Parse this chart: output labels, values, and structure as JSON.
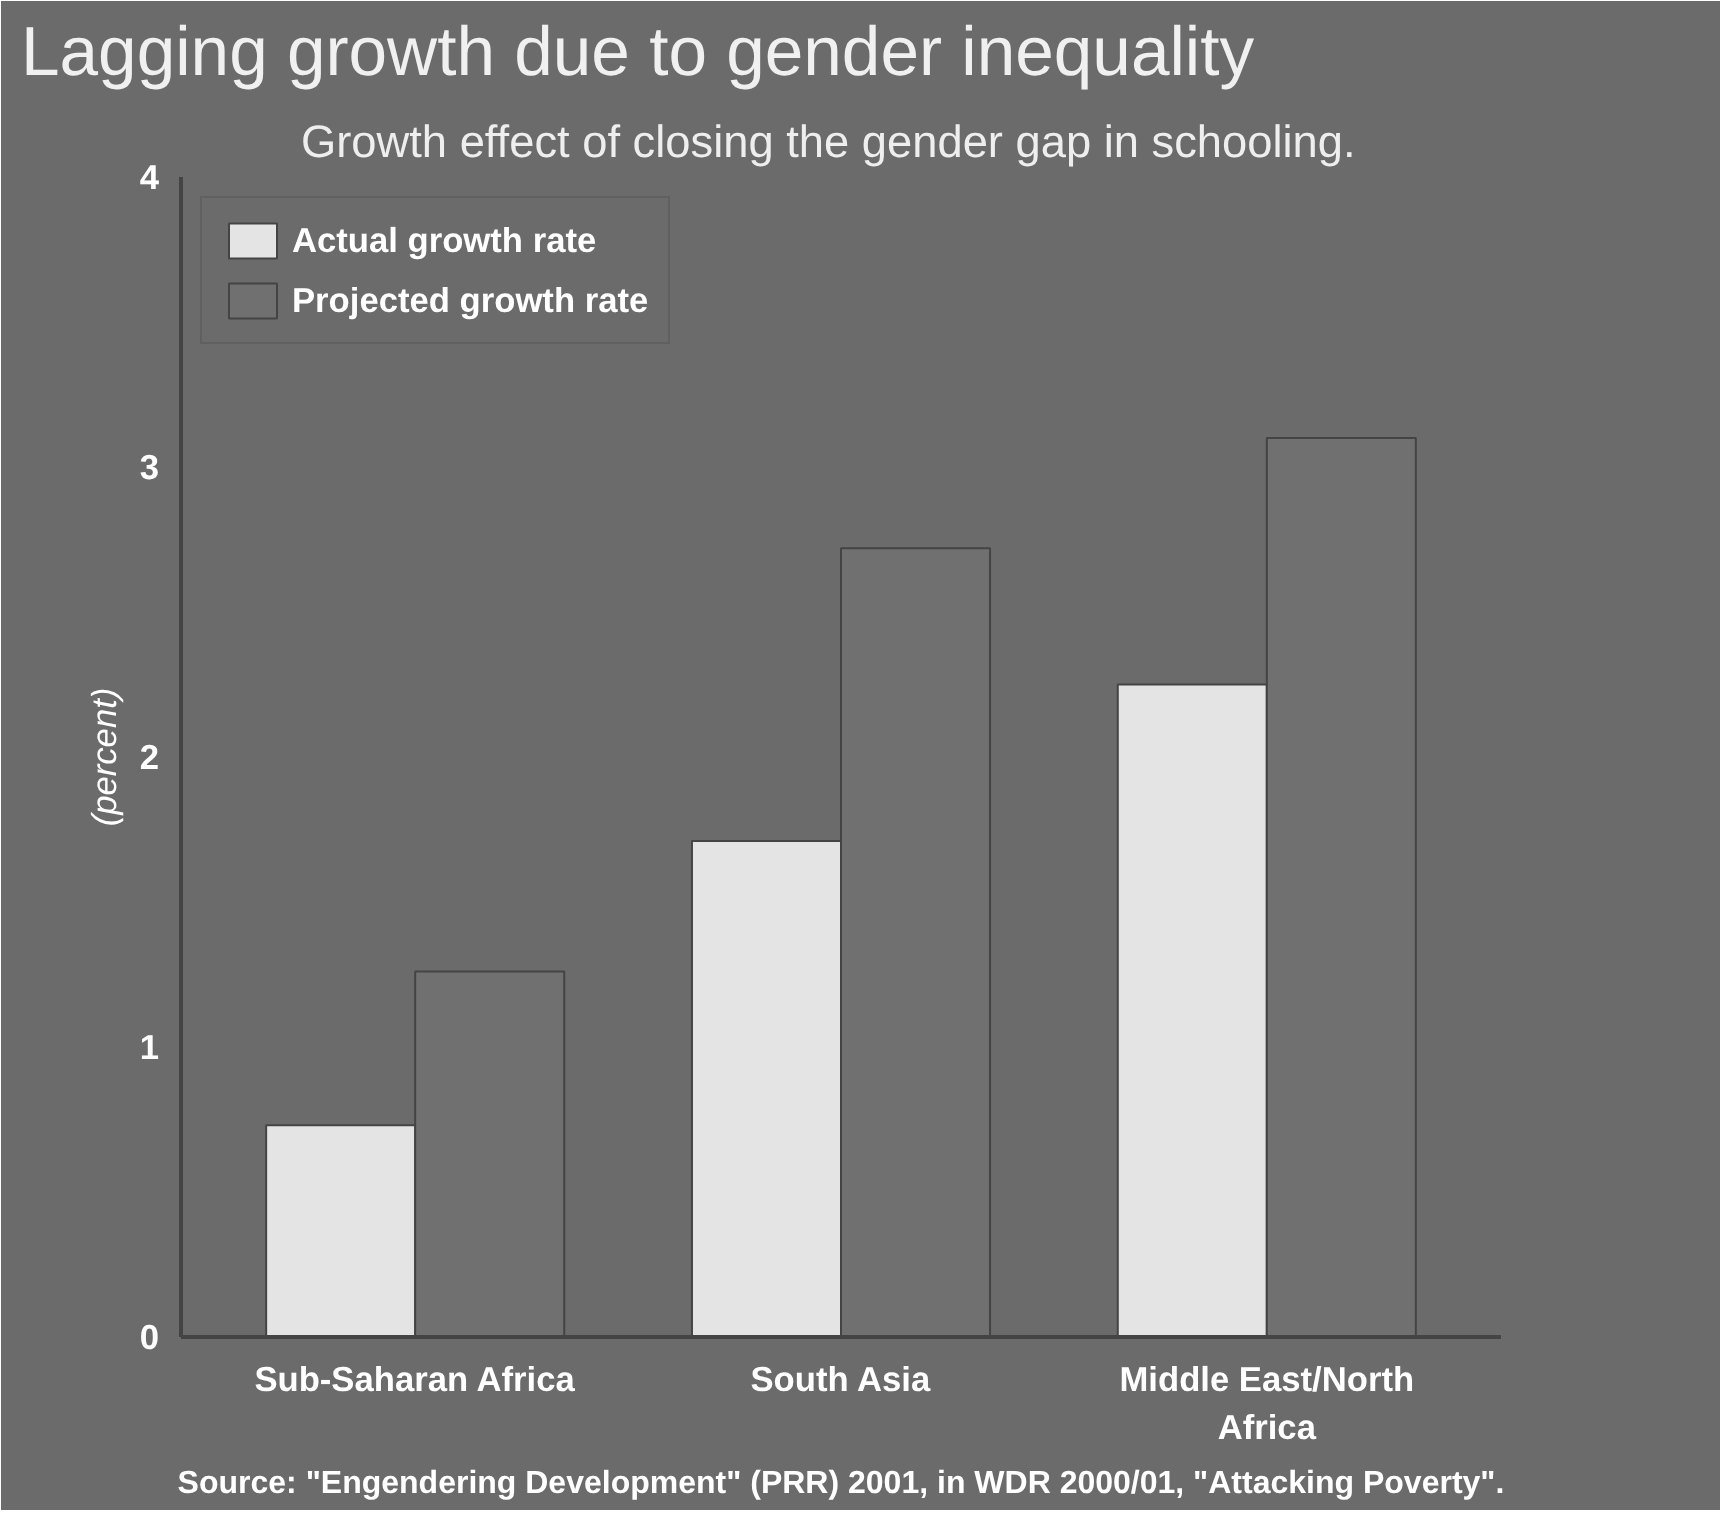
{
  "chart_data": {
    "type": "bar",
    "title": "Lagging growth due to gender inequality",
    "subtitle": "Growth effect of closing the gender gap in schooling.",
    "ylabel": "(percent)",
    "categories": [
      "Sub-Saharan Africa",
      "South Asia",
      "Middle East/North Africa"
    ],
    "series": [
      {
        "name": "Actual growth rate",
        "color": "#e4e4e4",
        "values": [
          0.73,
          1.71,
          2.25
        ]
      },
      {
        "name": "Projected growth rate",
        "color": "#707070",
        "values": [
          1.26,
          2.72,
          3.1
        ]
      }
    ],
    "ylim": [
      0,
      4
    ],
    "yticks": [
      0,
      1,
      2,
      3,
      4
    ],
    "grid": false,
    "legend": "top left",
    "annotations": [
      "Source: \"Engendering Development\" (PRR) 2001, in WDR 2000/01, \"Attacking Poverty\"."
    ]
  }
}
